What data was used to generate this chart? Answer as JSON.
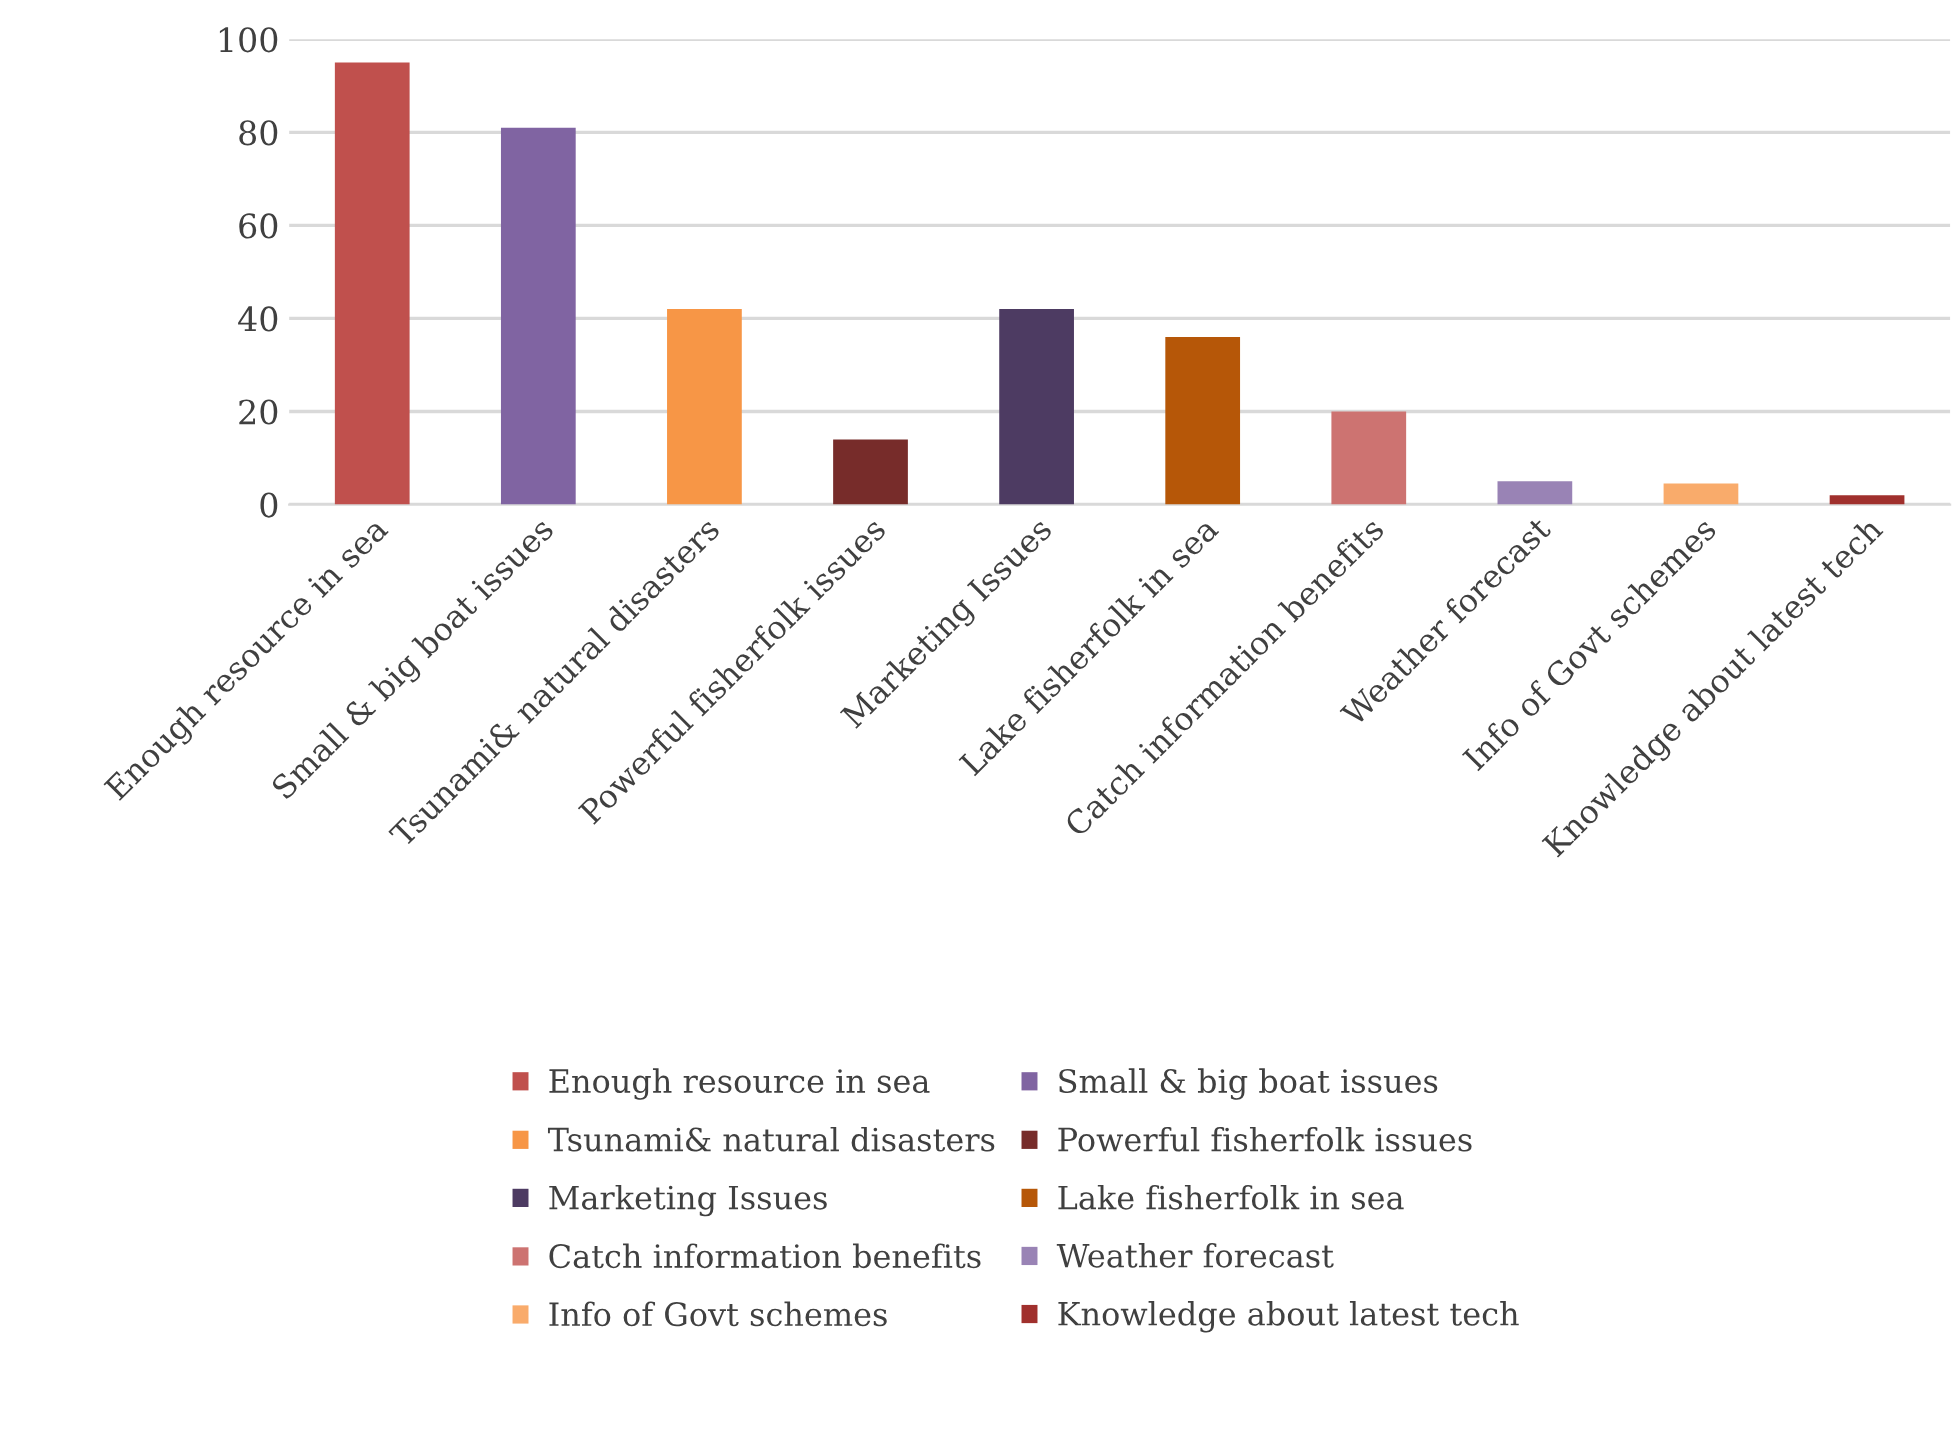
{
  "chart_data": {
    "type": "bar",
    "categories": [
      "Enough resource in sea",
      "Small & big boat issues",
      "Tsunami& natural disasters",
      "Powerful fisherfolk issues",
      "Marketing Issues",
      "Lake fisherfolk in sea",
      "Catch information benefits",
      "Weather forecast",
      "Info of Govt schemes",
      "Knowledge about latest tech"
    ],
    "series": [
      {
        "name": "Enough resource in sea",
        "color": "#c0504d",
        "values": [
          95,
          null,
          null,
          null,
          null,
          null,
          null,
          null,
          null,
          null
        ]
      },
      {
        "name": "Small & big boat issues",
        "color": "#8064a2",
        "values": [
          null,
          81,
          null,
          null,
          null,
          null,
          null,
          null,
          null,
          null
        ]
      },
      {
        "name": "Tsunami& natural disasters",
        "color": "#f79646",
        "values": [
          null,
          null,
          42,
          null,
          null,
          null,
          null,
          null,
          null,
          null
        ]
      },
      {
        "name": "Powerful fisherfolk issues",
        "color": "#772c2a",
        "values": [
          null,
          null,
          null,
          14,
          null,
          null,
          null,
          null,
          null,
          null
        ]
      },
      {
        "name": "Marketing Issues",
        "color": "#4d3b62",
        "values": [
          null,
          null,
          null,
          null,
          42,
          null,
          null,
          null,
          null,
          null
        ]
      },
      {
        "name": "Lake fisherfolk in sea",
        "color": "#b65708",
        "values": [
          null,
          null,
          null,
          null,
          null,
          36,
          null,
          null,
          null,
          null
        ]
      },
      {
        "name": "Catch information benefits",
        "color": "#cd7371",
        "values": [
          null,
          null,
          null,
          null,
          null,
          null,
          20,
          null,
          null,
          null
        ]
      },
      {
        "name": "Weather forecast",
        "color": "#9983b5",
        "values": [
          null,
          null,
          null,
          null,
          null,
          null,
          null,
          5,
          null,
          null
        ]
      },
      {
        "name": "Info of Govt schemes",
        "color": "#f9ab6b",
        "values": [
          null,
          null,
          null,
          null,
          null,
          null,
          null,
          null,
          4.5,
          null
        ]
      },
      {
        "name": "Knowledge about latest tech",
        "color": "#a0302d",
        "values": [
          null,
          null,
          null,
          null,
          null,
          null,
          null,
          null,
          null,
          2
        ]
      }
    ],
    "ylim": [
      0,
      100
    ],
    "yticks": [
      0,
      20,
      40,
      60,
      80,
      100
    ],
    "grid": "y",
    "legend": "bottom"
  }
}
